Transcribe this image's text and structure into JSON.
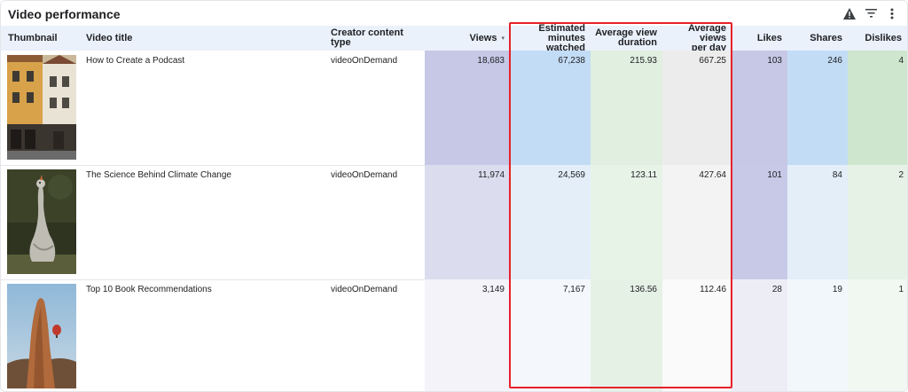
{
  "header": {
    "title": "Video performance",
    "icons": [
      "warning-icon",
      "filter-icon",
      "more-vert-icon"
    ]
  },
  "columns": {
    "thumbnail": "Thumbnail",
    "video_title": "Video title",
    "content_type": "Creator content type",
    "views": "Views",
    "est_minutes_1": "Estimated",
    "est_minutes_2": "minutes watched",
    "avg_duration_1": "Average view",
    "avg_duration_2": "duration",
    "avg_per_day_1": "Average views",
    "avg_per_day_2": "per day",
    "likes": "Likes",
    "shares": "Shares",
    "dislikes": "Dislikes",
    "sort_indicator": "▾"
  },
  "rows": [
    {
      "title": "How to Create a Podcast",
      "content_type": "videoOnDemand",
      "views": "18,683",
      "est_minutes": "67,238",
      "avg_duration": "215.93",
      "avg_per_day": "667.25",
      "likes": "103",
      "shares": "246",
      "dislikes": "4",
      "thumbnail": "old-town-buildings-photo"
    },
    {
      "title": "The Science Behind Climate Change",
      "content_type": "videoOnDemand",
      "views": "11,974",
      "est_minutes": "24,569",
      "avg_duration": "123.11",
      "avg_per_day": "427.64",
      "likes": "101",
      "shares": "84",
      "dislikes": "2",
      "thumbnail": "goose-photo"
    },
    {
      "title": "Top 10 Book Recommendations",
      "content_type": "videoOnDemand",
      "views": "3,149",
      "est_minutes": "7,167",
      "avg_duration": "136.56",
      "avg_per_day": "112.46",
      "likes": "28",
      "shares": "19",
      "dislikes": "1",
      "thumbnail": "rock-formation-balloon-photo"
    }
  ],
  "heat_colors": {
    "views": [
      "#c6c8e6",
      "#dcdcef",
      "#f3f3f9"
    ],
    "est_minutes": [
      "#c3dcf5",
      "#e3eef9",
      "#f4f8fc"
    ],
    "avg_duration": [
      "#e0efe0",
      "#e8f3e8",
      "#e6f1e6"
    ],
    "avg_per_day": [
      "#ececec",
      "#f3f3f3",
      "#fafafa"
    ],
    "likes": [
      "#c6c8e6",
      "#c8c9e7",
      "#ededf6"
    ],
    "shares": [
      "#c3dcf5",
      "#e3eef9",
      "#f2f7fc"
    ],
    "dislikes": [
      "#cde6cd",
      "#e6f2e6",
      "#f1f8f1"
    ]
  },
  "highlight_color": "#e8202a"
}
